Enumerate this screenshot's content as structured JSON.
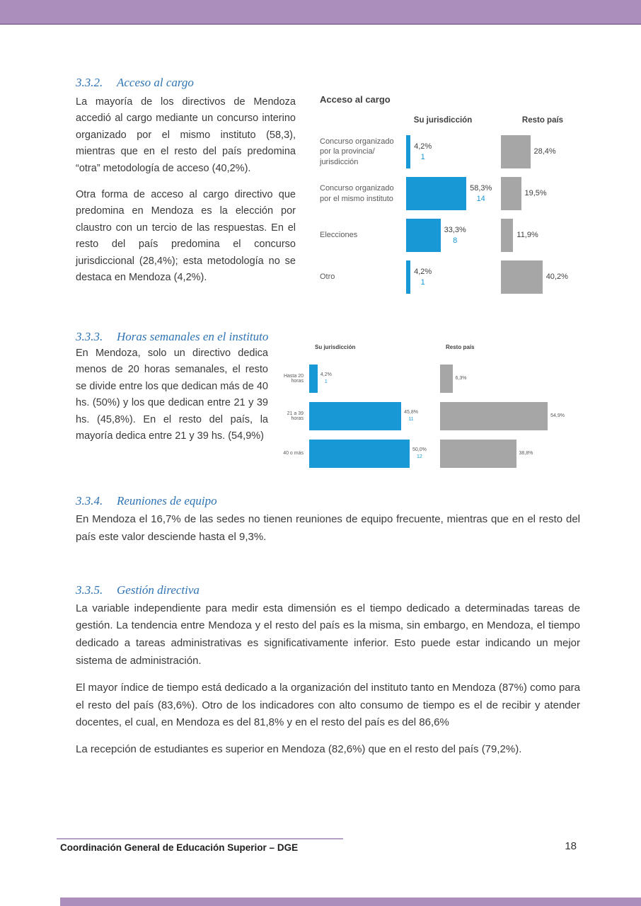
{
  "theme": {
    "header_bar_color": "#ab8ebc",
    "header_bar_edge": "#8f74a3",
    "heading_color": "#2e74b5",
    "bar_blue": "#1898d5",
    "bar_gray": "#a6a6a6",
    "footer_line_color": "#b3a2c6"
  },
  "sections": {
    "s332": {
      "number": "3.3.2.",
      "title": "Acceso al cargo",
      "p1": "La mayoría de los directivos de Mendoza accedió al cargo mediante un concurso interino organizado por el mismo instituto (58,3), mientras que en el resto del país predomina “otra” metodología de acceso (40,2%).",
      "p2": "Otra forma de acceso al cargo directivo que predomina en Mendoza es la elección por claustro con un tercio de las respuestas. En el resto del país predomina el concurso jurisdiccional (28,4%); esta metodología no se destaca en Mendoza (4,2%)."
    },
    "s333": {
      "number": "3.3.3.",
      "title": "Horas semanales en el instituto",
      "p1": "En Mendoza, solo un directivo dedica menos de 20 horas semanales, el resto se divide entre los que dedican más de 40 hs. (50%) y los que dedican entre 21 y 39 hs. (45,8%). En el resto del país, la mayoría dedica entre 21 y 39 hs. (54,9%)"
    },
    "s334": {
      "number": "3.3.4.",
      "title": "Reuniones de equipo",
      "p1": "En Mendoza el 16,7% de las sedes no tienen reuniones de equipo frecuente, mientras que en el resto del país este valor desciende hasta el 9,3%."
    },
    "s335": {
      "number": "3.3.5.",
      "title": "Gestión directiva",
      "p1": "La variable independiente para medir esta dimensión es el tiempo dedicado a determinadas tareas de gestión. La tendencia entre Mendoza y el resto del país es la misma, sin embargo, en Mendoza, el tiempo dedicado a tareas administrativas es significativamente inferior. Esto puede estar indicando un mejor sistema de administración.",
      "p2": "El mayor índice de tiempo está dedicado a la organización del instituto tanto en Mendoza (87%) como para el resto del país (83,6%). Otro de los indicadores con alto consumo de tiempo es el de recibir y atender docentes, el cual, en Mendoza es del 81,8% y en el resto del país es del 86,6%",
      "p3": "La recepción de estudiantes es superior en Mendoza (82,6%) que en el resto del país (79,2%)."
    }
  },
  "chart_data": [
    {
      "type": "bar",
      "orientation": "horizontal",
      "title": "Acceso al cargo",
      "categories": [
        "Concurso organizado por la provincia/ jurisdicción",
        "Concurso organizado por el mismo instituto",
        "Elecciones",
        "Otro"
      ],
      "series": [
        {
          "name": "Su jurisdicción",
          "color": "#1898d5",
          "values": [
            4.2,
            58.3,
            33.3,
            4.2
          ],
          "labels": [
            "4,2%",
            "58,3%",
            "33,3%",
            "4,2%"
          ],
          "counts": [
            "1",
            "14",
            "8",
            "1"
          ]
        },
        {
          "name": "Resto país",
          "color": "#a6a6a6",
          "values": [
            28.4,
            19.5,
            11.9,
            40.2
          ],
          "labels": [
            "28,4%",
            "19,5%",
            "11,9%",
            "40,2%"
          ]
        }
      ],
      "xlim": [
        0,
        100
      ],
      "grid": false,
      "value_labels": true,
      "legend_position": "column-headers"
    },
    {
      "type": "bar",
      "orientation": "horizontal",
      "title": "",
      "categories": [
        "Hasta 20 horas",
        "21 a 39 horas",
        "40 o más"
      ],
      "series": [
        {
          "name": "Su jurisdicción",
          "color": "#1898d5",
          "values": [
            4.2,
            45.8,
            50.0
          ],
          "labels": [
            "4,2%",
            "45,8%",
            "50,0%"
          ],
          "counts": [
            "1",
            "11",
            "12"
          ]
        },
        {
          "name": "Resto país",
          "color": "#a6a6a6",
          "values": [
            6.3,
            54.9,
            38.8
          ],
          "labels": [
            "6,3%",
            "54,9%",
            "38,8%"
          ]
        }
      ],
      "xlim": [
        0,
        100
      ],
      "grid": false,
      "value_labels": true,
      "legend_position": "column-headers"
    }
  ],
  "footer": {
    "text": "Coordinación General de Educación Superior – DGE",
    "page_number": "18"
  }
}
